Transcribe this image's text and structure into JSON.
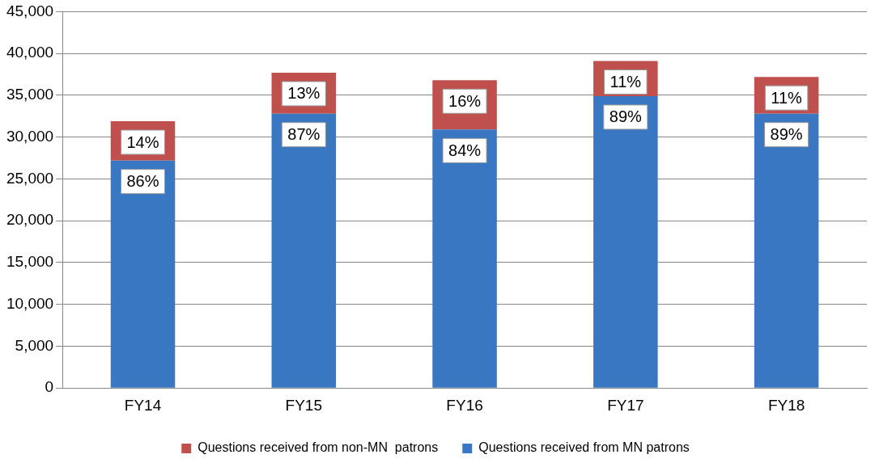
{
  "chart_data": {
    "type": "bar",
    "stacked": true,
    "categories": [
      "FY14",
      "FY15",
      "FY16",
      "FY17",
      "FY18"
    ],
    "series": [
      {
        "name": "Questions received from MN patrons",
        "color": "#3a77c2",
        "values": [
          27200,
          32800,
          30900,
          34900,
          32800
        ]
      },
      {
        "name": "Questions received from non-MN  patrons",
        "color": "#c0504d",
        "values": [
          4700,
          4900,
          5900,
          4200,
          4400
        ]
      }
    ],
    "annotations": [
      {
        "text": "86%",
        "x": "FY14",
        "y": 27200
      },
      {
        "text": "87%",
        "x": "FY15",
        "y": 32800
      },
      {
        "text": "84%",
        "x": "FY16",
        "y": 30900
      },
      {
        "text": "89%",
        "x": "FY17",
        "y": 34900
      },
      {
        "text": "89%",
        "x": "FY18",
        "y": 32800
      },
      {
        "text": "14%",
        "x": "FY14",
        "y": 31900
      },
      {
        "text": "13%",
        "x": "FY15",
        "y": 37700
      },
      {
        "text": "16%",
        "x": "FY16",
        "y": 36800
      },
      {
        "text": "11%",
        "x": "FY17",
        "y": 39100
      },
      {
        "text": "11%",
        "x": "FY18",
        "y": 37200
      }
    ],
    "ylim": [
      0,
      45000
    ],
    "yticks": [
      0,
      {
        "value": 5000,
        "label": "5,000"
      },
      {
        "value": 10000,
        "label": "10,000"
      },
      {
        "value": 15000,
        "label": "15,000"
      },
      {
        "value": 20000,
        "label": "20,000"
      },
      {
        "value": 25000,
        "label": "25,000"
      },
      {
        "value": 30000,
        "label": "30,000"
      },
      {
        "value": 35000,
        "label": "35,000"
      },
      {
        "value": 40000,
        "label": "40,000"
      },
      {
        "value": 45000,
        "label": "45,000"
      }
    ],
    "grid": "y",
    "legend": "bottom"
  }
}
